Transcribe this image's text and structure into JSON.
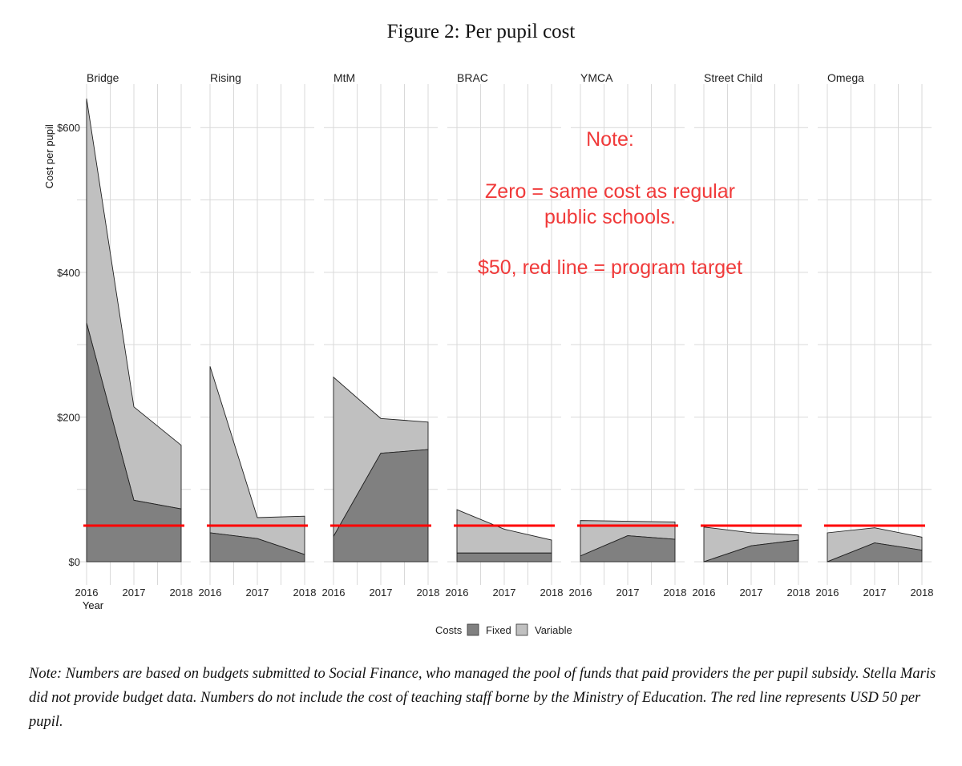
{
  "title": "Figure 2: Per pupil cost",
  "caption": "Note: Numbers are based on budgets submitted to Social Finance, who managed the pool of funds that paid providers the per pupil subsidy. Stella Maris did not provide budget data. Numbers do not include the cost of teaching staff borne by the Ministry of Education. The red line represents USD 50 per pupil.",
  "annotation": {
    "line1": "Note:",
    "line2": "Zero = same cost as regular",
    "line3": "public schools.",
    "line4": "$50, red line = program target"
  },
  "colors": {
    "fixed": "#808080",
    "variable": "#c0c0c0",
    "target_line": "#ff0000",
    "grid": "#d9d9d9",
    "annotation": "#f03a3a"
  },
  "chart_data": {
    "type": "area",
    "stacked": true,
    "title": "Figure 2: Per pupil cost",
    "xlabel": "Year",
    "ylabel": "Cost per pupil",
    "x": [
      "2016",
      "2017",
      "2018"
    ],
    "ylim": [
      -32,
      660
    ],
    "yticks": [
      0,
      200,
      400,
      600
    ],
    "ytick_labels": [
      "$0",
      "$200",
      "$400",
      "$600"
    ],
    "grid": true,
    "target_line": 50,
    "legend": {
      "title": "Costs",
      "position": "bottom",
      "entries": [
        {
          "key": "fixed",
          "label": "Fixed"
        },
        {
          "key": "variable",
          "label": "Variable"
        }
      ]
    },
    "panels": [
      {
        "name": "Bridge",
        "fixed": [
          330,
          85,
          73
        ],
        "variable": [
          310,
          129,
          88
        ]
      },
      {
        "name": "Rising",
        "fixed": [
          40,
          32,
          10
        ],
        "variable": [
          230,
          29,
          53
        ]
      },
      {
        "name": "MtM",
        "fixed": [
          35,
          150,
          155
        ],
        "variable": [
          220,
          48,
          38
        ]
      },
      {
        "name": "BRAC",
        "fixed": [
          12,
          12,
          12
        ],
        "variable": [
          60,
          33,
          18
        ]
      },
      {
        "name": "YMCA",
        "fixed": [
          8,
          36,
          31
        ],
        "variable": [
          49,
          20,
          24
        ]
      },
      {
        "name": "Street Child",
        "fixed": [
          0,
          22,
          30
        ],
        "variable": [
          48,
          18,
          7
        ]
      },
      {
        "name": "Omega",
        "fixed": [
          0,
          26,
          16
        ],
        "variable": [
          40,
          21,
          18
        ]
      }
    ]
  }
}
